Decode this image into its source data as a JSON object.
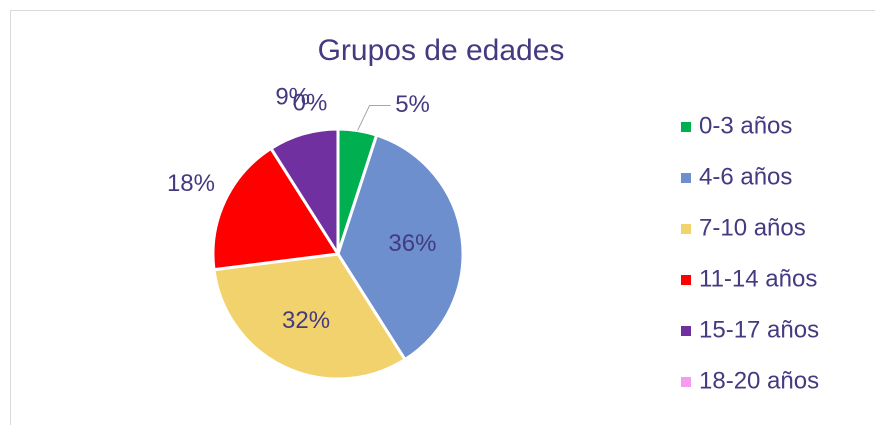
{
  "chart_data": {
    "type": "pie",
    "title": "Grupos de edades",
    "categories": [
      "0-3 años",
      "4-6 años",
      "7-10 años",
      "11-14 años",
      "15-17 años",
      "18-20 años"
    ],
    "values": [
      5,
      36,
      32,
      18,
      9,
      0
    ],
    "value_labels": [
      "5%",
      "36%",
      "32%",
      "18%",
      "9%",
      "0%"
    ],
    "colors": [
      "#00b050",
      "#6d8fcd",
      "#f2d26c",
      "#ff0000",
      "#7030a0",
      "#f59cf0"
    ],
    "legend": "right"
  }
}
